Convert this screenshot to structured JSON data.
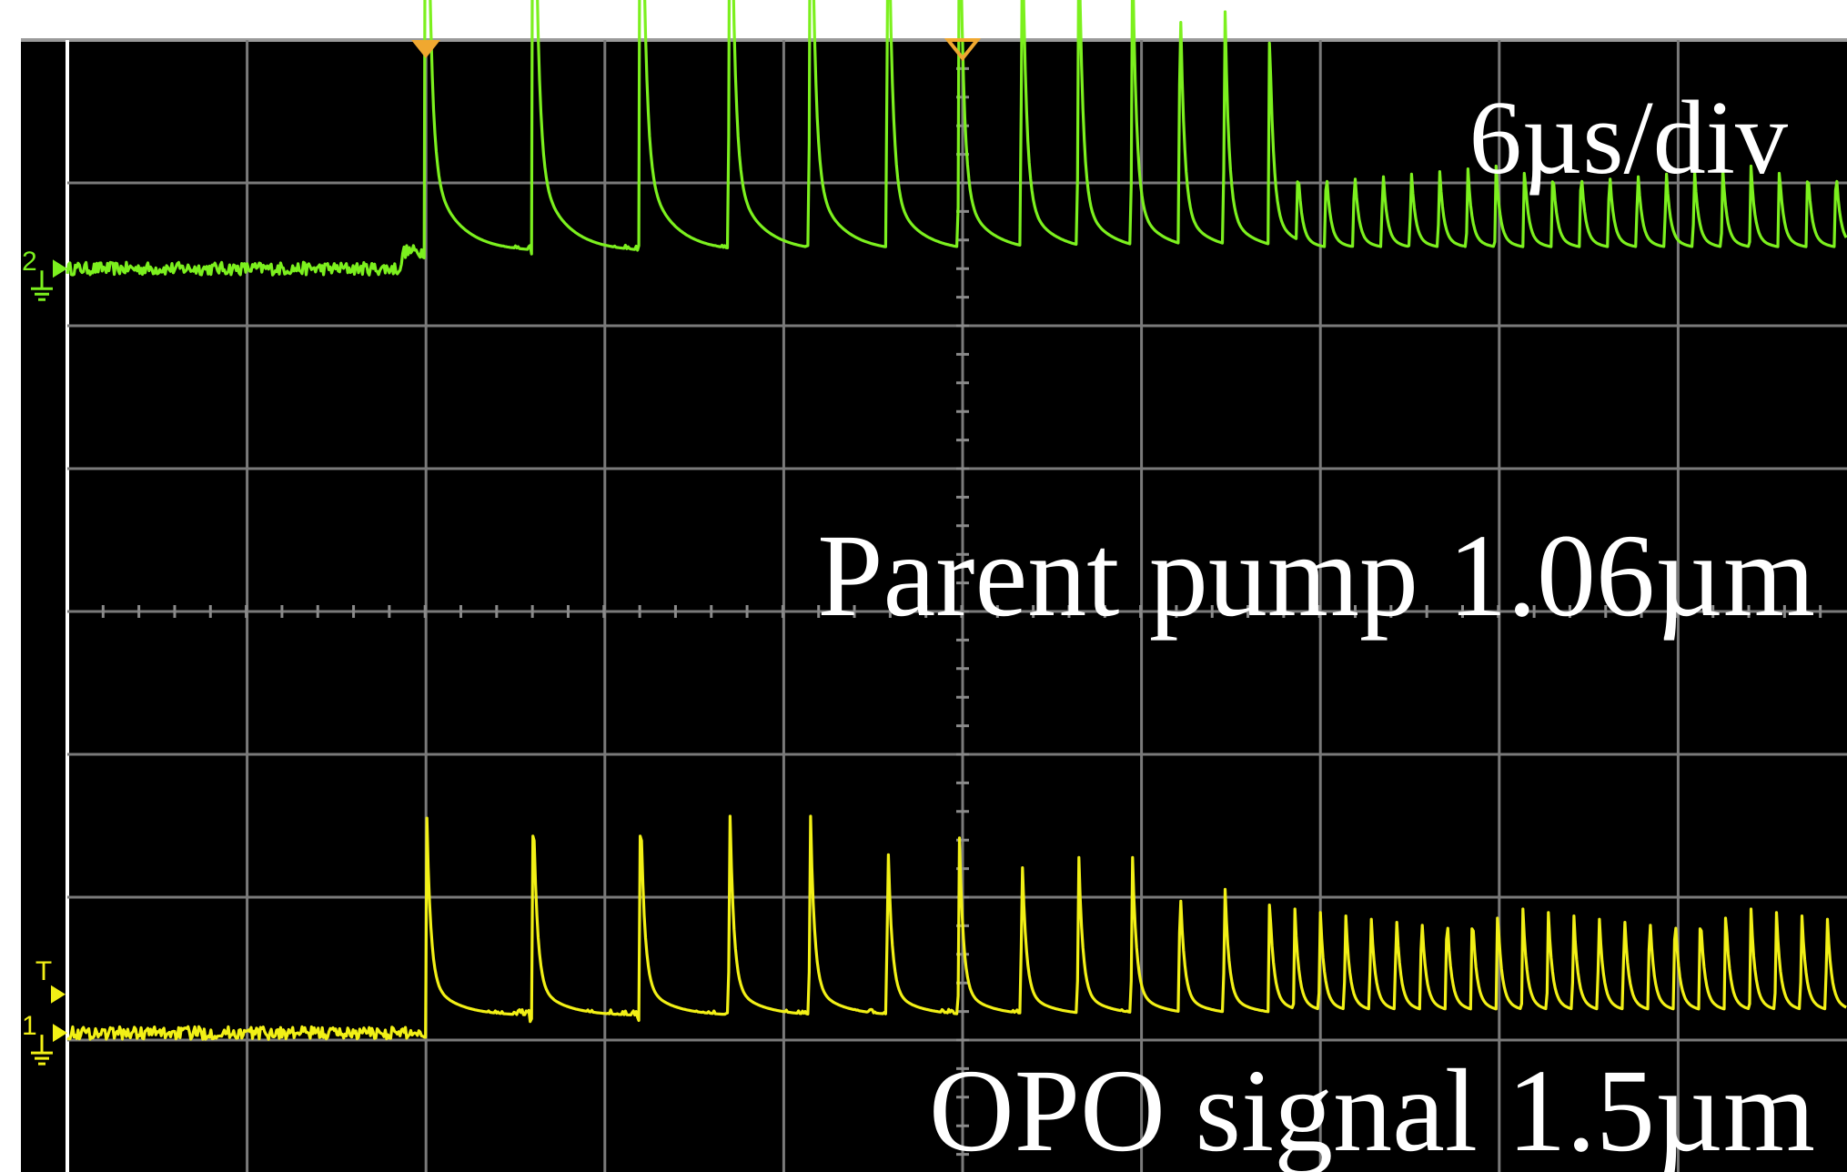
{
  "chart_data": {
    "type": "line",
    "title": "",
    "xlabel": "",
    "ylabel": "",
    "timebase_label": "6µs/div",
    "time_per_div_us": 6,
    "x_divisions": 10,
    "y_divisions": 8,
    "grid": true,
    "background_color": "#000000",
    "grid_color": "#7a7a7a",
    "trigger_marker_color": "#f0a830",
    "channel_markers": [
      {
        "label": "2",
        "color": "#7cf01e"
      },
      {
        "label": "1",
        "color": "#f2f016"
      },
      {
        "label": "T",
        "color": "#f2f016"
      }
    ],
    "trigger_time_us": 0,
    "x_range_us": [
      -18.2,
      42.5
    ],
    "series": [
      {
        "name": "Parent pump 1.06µm",
        "color": "#7cf01e",
        "baseline_div": 2.4,
        "pulse_onset_us": -0.8,
        "pulse_times_us": [
          0,
          3.6,
          7.2,
          10.2,
          12.9,
          15.5,
          17.9,
          20.0,
          21.9,
          23.7,
          25.3,
          26.8,
          28.3
        ],
        "pulse_peaks_div": [
          6.8,
          6.7,
          6.7,
          6.2,
          6.0,
          5.4,
          5.2,
          4.9,
          4.8,
          4.6,
          4.3,
          4.2,
          4.0
        ],
        "steady_peak_div": 3.0,
        "steady_start_us": 28.3,
        "steady_period_us": 0.95,
        "modulation_end_us": 58.5
      },
      {
        "name": "OPO signal 1.5µm",
        "color": "#f2f016",
        "baseline_div": -2.95,
        "pulse_onset_us": 0,
        "pulse_times_us": [
          0,
          3.6,
          7.2,
          10.2,
          12.9,
          15.5,
          17.9,
          20.0,
          21.9,
          23.7,
          25.3,
          26.8,
          28.3
        ],
        "pulse_peaks_div": [
          -1.2,
          -1.4,
          -1.4,
          -1.5,
          -1.5,
          -1.7,
          -1.7,
          -1.8,
          -1.8,
          -1.8,
          -2.0,
          -2.0,
          -2.1
        ],
        "steady_peak_div": -2.2,
        "steady_start_us": 28.3,
        "steady_period_us": 0.85,
        "modulation_end_us": 58.5
      }
    ]
  }
}
